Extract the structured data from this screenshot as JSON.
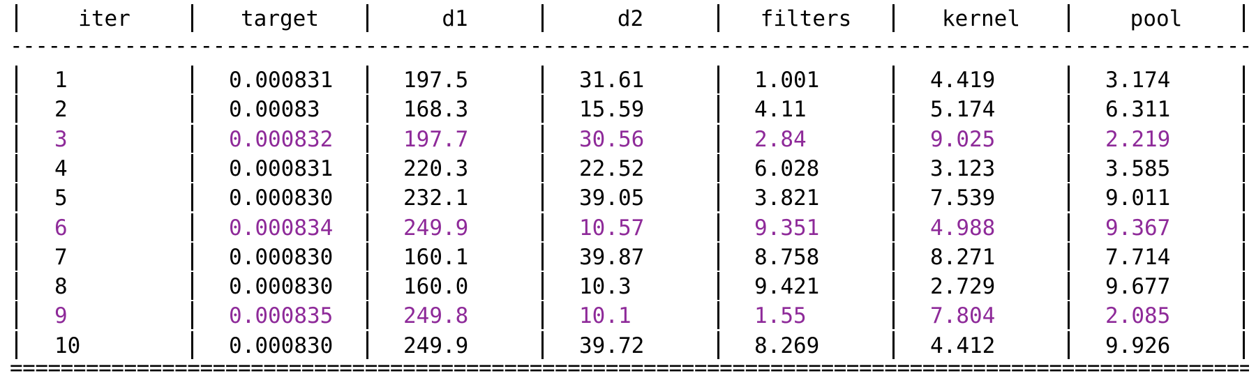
{
  "table": {
    "headers": [
      "iter",
      "target",
      "d1",
      "d2",
      "filters",
      "kernel",
      "pool"
    ],
    "highlight_color": "#8e2a99",
    "rows": [
      {
        "highlighted": false,
        "cells": [
          "1",
          "0.000831",
          "197.5",
          "31.61",
          "1.001",
          "4.419",
          "3.174"
        ]
      },
      {
        "highlighted": false,
        "cells": [
          "2",
          "0.00083",
          "168.3",
          "15.59",
          "4.11",
          "5.174",
          "6.311"
        ]
      },
      {
        "highlighted": true,
        "cells": [
          "3",
          "0.000832",
          "197.7",
          "30.56",
          "2.84",
          "9.025",
          "2.219"
        ]
      },
      {
        "highlighted": false,
        "cells": [
          "4",
          "0.000831",
          "220.3",
          "22.52",
          "6.028",
          "3.123",
          "3.585"
        ]
      },
      {
        "highlighted": false,
        "cells": [
          "5",
          "0.000830",
          "232.1",
          "39.05",
          "3.821",
          "7.539",
          "9.011"
        ]
      },
      {
        "highlighted": true,
        "cells": [
          "6",
          "0.000834",
          "249.9",
          "10.57",
          "9.351",
          "4.988",
          "9.367"
        ]
      },
      {
        "highlighted": false,
        "cells": [
          "7",
          "0.000830",
          "160.1",
          "39.87",
          "8.758",
          "8.271",
          "7.714"
        ]
      },
      {
        "highlighted": false,
        "cells": [
          "8",
          "0.000830",
          "160.0",
          "10.3",
          "9.421",
          "2.729",
          "9.677"
        ]
      },
      {
        "highlighted": true,
        "cells": [
          "9",
          "0.000835",
          "249.8",
          "10.1",
          "1.55",
          "7.804",
          "2.085"
        ]
      },
      {
        "highlighted": false,
        "cells": [
          "10",
          "0.000830",
          "249.9",
          "39.72",
          "8.269",
          "4.412",
          "9.926"
        ]
      }
    ]
  }
}
